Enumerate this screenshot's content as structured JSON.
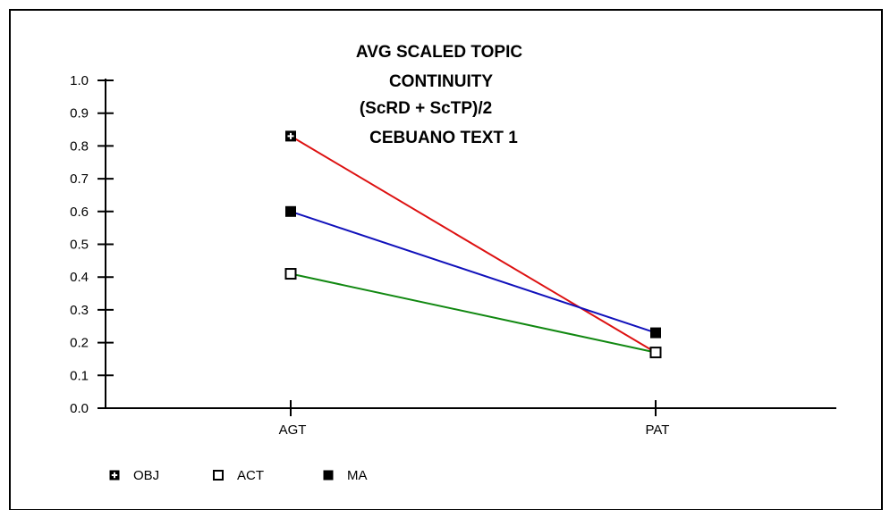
{
  "chart_data": {
    "type": "line",
    "title_lines": [
      "AVG SCALED TOPIC",
      "CONTINUITY",
      "(ScRD + ScTP)/2",
      "CEBUANO TEXT 1"
    ],
    "xlabel": "",
    "ylabel": "",
    "categories": [
      "AGT",
      "PAT"
    ],
    "ylim": [
      0,
      1.0
    ],
    "yticks": [
      "0.0",
      "0.1",
      "0.2",
      "0.3",
      "0.4",
      "0.5",
      "0.6",
      "0.7",
      "0.8",
      "0.9",
      "1.0"
    ],
    "grid": false,
    "legend_position": "bottom-left",
    "series": [
      {
        "name": "OBJ",
        "values": [
          0.83,
          0.17
        ],
        "color": "#dd1111",
        "marker": "plus-square"
      },
      {
        "name": "ACT",
        "values": [
          0.41,
          0.17
        ],
        "color": "#118811",
        "marker": "open-square"
      },
      {
        "name": "MA",
        "values": [
          0.6,
          0.23
        ],
        "color": "#1111bb",
        "marker": "filled-square"
      }
    ]
  }
}
